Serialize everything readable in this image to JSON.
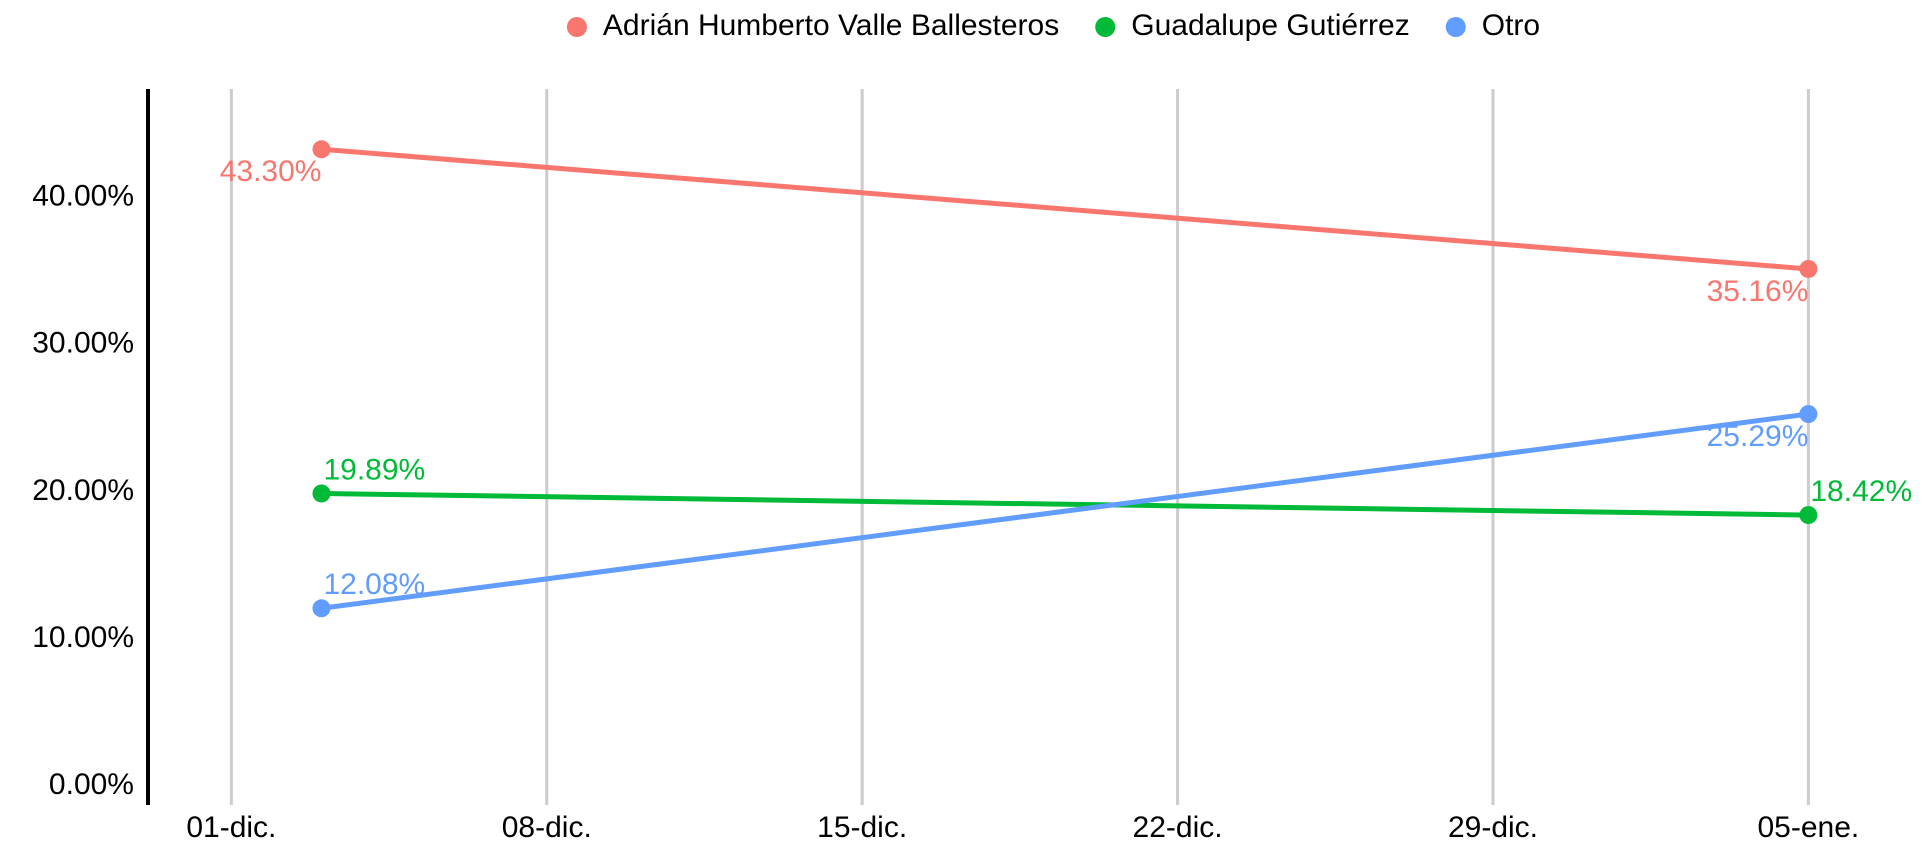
{
  "chart_data": {
    "type": "line",
    "x": [
      2,
      35
    ],
    "xlim": [
      -1.85,
      36.9
    ],
    "xticks": [
      {
        "value": 0,
        "label": "01-dic."
      },
      {
        "value": 7,
        "label": "08-dic."
      },
      {
        "value": 14,
        "label": "15-dic."
      },
      {
        "value": 21,
        "label": "22-dic."
      },
      {
        "value": 28,
        "label": "29-dic."
      },
      {
        "value": 35,
        "label": "05-ene."
      }
    ],
    "ylim": [
      -1.3,
      47.4
    ],
    "yticks": [
      {
        "value": 0,
        "label": "0.00%"
      },
      {
        "value": 10,
        "label": "10.00%"
      },
      {
        "value": 20,
        "label": "20.00%"
      },
      {
        "value": 30,
        "label": "30.00%"
      },
      {
        "value": 40,
        "label": "40.00%"
      }
    ],
    "grid": "x",
    "legend": "top",
    "series": [
      {
        "name": "Adrián Humberto Valle Ballesteros",
        "color": "#f8766d",
        "values": [
          43.3,
          35.16
        ],
        "value_labels": [
          "43.30%",
          "35.16%"
        ]
      },
      {
        "name": "Guadalupe Gutiérrez",
        "color": "#00ba38",
        "values": [
          19.89,
          18.42
        ],
        "value_labels": [
          "19.89%",
          "18.42%"
        ]
      },
      {
        "name": "Otro",
        "color": "#619cff",
        "values": [
          12.08,
          25.29
        ],
        "value_labels": [
          "12.08%",
          "25.29%"
        ]
      }
    ]
  }
}
